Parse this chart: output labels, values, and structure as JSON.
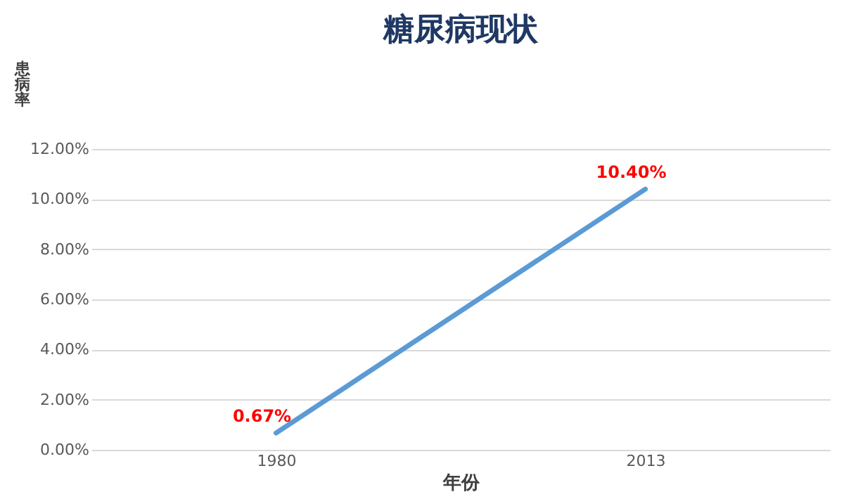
{
  "chart_data": {
    "type": "line",
    "title": "糖尿病现状",
    "xlabel": "年份",
    "ylabel": "患病率",
    "categories": [
      "1980",
      "2013"
    ],
    "series": [
      {
        "color": "#5b9bd5",
        "values": [
          0.67,
          10.4
        ],
        "value_labels": [
          "0.67%",
          "10.40%"
        ]
      }
    ],
    "ylim": [
      0,
      12
    ],
    "yticks": [
      {
        "value": 0,
        "label": "0.00%"
      },
      {
        "value": 2,
        "label": "2.00%"
      },
      {
        "value": 4,
        "label": "4.00%"
      },
      {
        "value": 6,
        "label": "6.00%"
      },
      {
        "value": 8,
        "label": "8.00%"
      },
      {
        "value": 10,
        "label": "10.00%"
      },
      {
        "value": 12,
        "label": "12.00%"
      }
    ],
    "grid": "y",
    "marker": "none",
    "line_style": "solid"
  }
}
